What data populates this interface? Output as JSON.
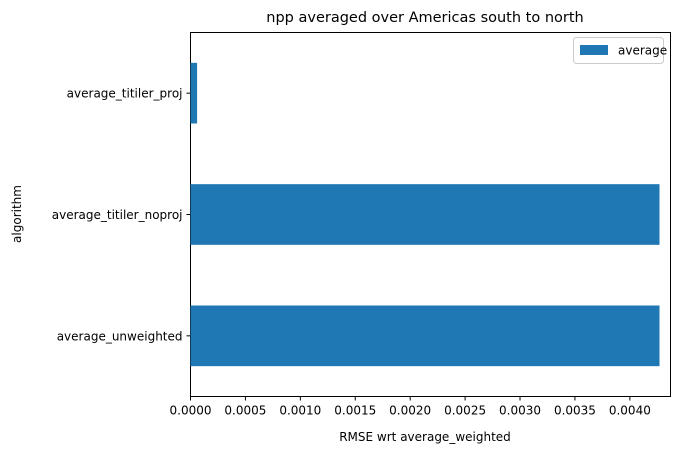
{
  "chart_data": {
    "type": "bar",
    "orientation": "horizontal",
    "title": "npp averaged over Americas south to north",
    "xlabel": "RMSE wrt average_weighted",
    "ylabel": "algorithm",
    "categories": [
      "average_unweighted",
      "average_titiler_noproj",
      "average_titiler_proj"
    ],
    "series": [
      {
        "name": "average",
        "values": [
          0.00427,
          0.00427,
          6e-05
        ],
        "color": "#1f77b4"
      }
    ],
    "xlim": [
      0,
      0.00437
    ],
    "xticks": [
      0.0,
      0.0005,
      0.001,
      0.0015,
      0.002,
      0.0025,
      0.003,
      0.0035,
      0.004
    ],
    "xtick_labels": [
      "0.0000",
      "0.0005",
      "0.0010",
      "0.0015",
      "0.0020",
      "0.0025",
      "0.0030",
      "0.0035",
      "0.0040"
    ],
    "grid": false,
    "legend_position": "top-right"
  }
}
